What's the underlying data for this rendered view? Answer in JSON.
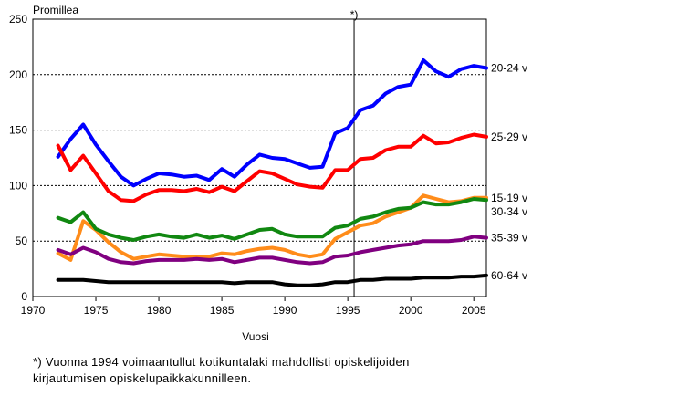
{
  "chart_data": {
    "type": "line",
    "ylabel": "Promillea",
    "xlabel": "Vuosi",
    "xlim": [
      1970,
      2006
    ],
    "ylim": [
      0,
      250
    ],
    "x_ticks": [
      1970,
      1975,
      1980,
      1985,
      1990,
      1995,
      2000,
      2005
    ],
    "y_ticks": [
      0,
      50,
      100,
      150,
      200,
      250
    ],
    "grid": "horizontal dashed",
    "legend": "right, inline at line ends",
    "marker": {
      "label": "*)",
      "x": 1995.5
    },
    "x": [
      1972,
      1973,
      1974,
      1975,
      1976,
      1977,
      1978,
      1979,
      1980,
      1981,
      1982,
      1983,
      1984,
      1985,
      1986,
      1987,
      1988,
      1989,
      1990,
      1991,
      1992,
      1993,
      1994,
      1995,
      1996,
      1997,
      1998,
      1999,
      2000,
      2001,
      2002,
      2003,
      2004,
      2005,
      2006
    ],
    "series": [
      {
        "name": "20-24 v",
        "color": "#0000ff",
        "values": [
          126,
          142,
          155,
          137,
          122,
          108,
          100,
          106,
          111,
          110,
          108,
          109,
          105,
          115,
          108,
          119,
          128,
          125,
          124,
          120,
          116,
          117,
          147,
          152,
          168,
          172,
          183,
          189,
          191,
          213,
          203,
          198,
          205,
          208,
          206
        ]
      },
      {
        "name": "25-29 v",
        "color": "#ff0000",
        "values": [
          136,
          114,
          127,
          111,
          95,
          87,
          86,
          92,
          96,
          96,
          95,
          97,
          94,
          99,
          95,
          104,
          113,
          111,
          106,
          101,
          99,
          98,
          114,
          114,
          124,
          125,
          132,
          135,
          135,
          145,
          138,
          139,
          143,
          146,
          144
        ]
      },
      {
        "name": "15-19 v",
        "color": "#ff8c1a",
        "values": [
          39,
          33,
          68,
          60,
          49,
          40,
          34,
          36,
          38,
          37,
          36,
          36,
          36,
          39,
          38,
          41,
          43,
          44,
          42,
          38,
          36,
          38,
          52,
          58,
          64,
          66,
          72,
          76,
          80,
          91,
          88,
          85,
          86,
          89,
          89
        ]
      },
      {
        "name": "30-34 v",
        "color": "#118811",
        "values": [
          71,
          67,
          76,
          61,
          56,
          53,
          51,
          54,
          56,
          54,
          53,
          56,
          53,
          55,
          52,
          56,
          60,
          61,
          56,
          54,
          54,
          54,
          62,
          64,
          70,
          72,
          76,
          79,
          80,
          85,
          83,
          83,
          85,
          88,
          87
        ]
      },
      {
        "name": "35-39 v",
        "color": "#800080",
        "values": [
          42,
          38,
          44,
          40,
          34,
          31,
          30,
          32,
          33,
          33,
          33,
          34,
          33,
          34,
          31,
          33,
          35,
          35,
          33,
          31,
          30,
          31,
          36,
          37,
          40,
          42,
          44,
          46,
          47,
          50,
          50,
          50,
          51,
          54,
          53
        ]
      },
      {
        "name": "60-64 v",
        "color": "#000000",
        "values": [
          15,
          15,
          15,
          14,
          13,
          13,
          13,
          13,
          13,
          13,
          13,
          13,
          13,
          13,
          12,
          13,
          13,
          13,
          11,
          10,
          10,
          11,
          13,
          13,
          15,
          15,
          16,
          16,
          16,
          17,
          17,
          17,
          18,
          18,
          19
        ]
      }
    ]
  },
  "footnote": {
    "line1": "*) Vuonna 1994 voimaantullut kotikuntalaki mahdollisti opiskelijoiden",
    "line2": "kirjautumisen opiskelupaikkakunnilleen."
  }
}
